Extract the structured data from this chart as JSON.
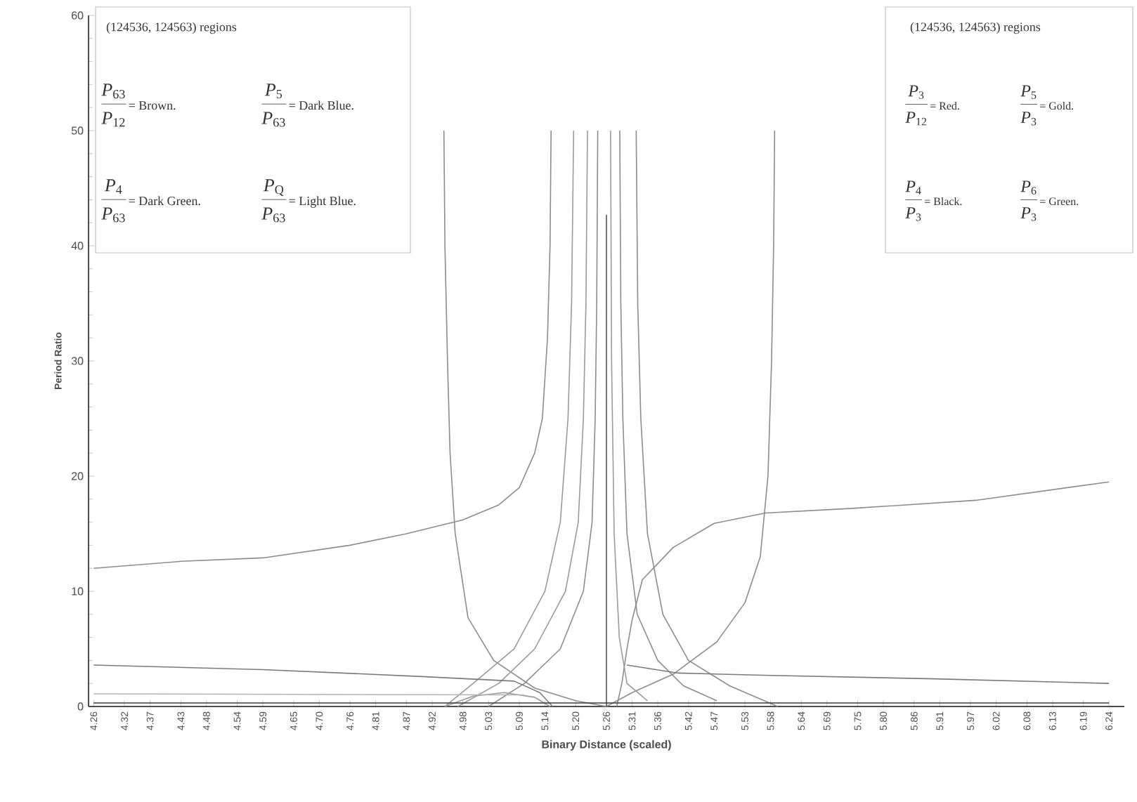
{
  "chart_data": {
    "type": "line",
    "xlabel": "Binary Distance (scaled)",
    "ylabel": "Period Ratio",
    "xlim": [
      4.25,
      6.27
    ],
    "ylim": [
      0,
      60
    ],
    "xticks": [
      4.26,
      4.32,
      4.37,
      4.43,
      4.48,
      4.54,
      4.59,
      4.65,
      {
        "value": 4.7,
        "label": "4.70"
      },
      4.76,
      4.81,
      4.87,
      4.92,
      4.98,
      5.03,
      5.09,
      5.14,
      {
        "value": 5.2,
        "label": "5.20"
      },
      5.26,
      5.31,
      5.36,
      5.42,
      5.47,
      5.53,
      5.58,
      5.64,
      5.69,
      5.75,
      {
        "value": 5.8,
        "label": "5.80"
      },
      5.86,
      5.91,
      5.97,
      6.02,
      6.08,
      6.13,
      6.19,
      6.24
    ],
    "yticks": [
      0,
      10,
      20,
      30,
      40,
      50,
      60
    ],
    "grid": false,
    "marker": "none",
    "line_style": "solid",
    "annotations": [
      "(124536, 124563) regions",
      "*P*$_{63}$",
      "*P*$_{12}$",
      "= Brown.",
      "*P*$_{5}$",
      "*P*$_{63}$",
      "= Dark Blue.",
      "*P*$_{4}$",
      "*P*$_{63}$",
      "= Dark Green.",
      "*P*$_{Q}$",
      "*P*$_{63}$",
      "= Light Blue.",
      "(124536, 124563) regions",
      "*P*$_{3}$",
      "*P*$_{12}$",
      "= Red.",
      "*P*$_{5}$",
      "*P*$_{3}$",
      "= Gold.",
      "*P*$_{4}$",
      "*P*$_{3}$",
      "= Black.",
      "*P*$_{6}$",
      "*P*$_{3}$",
      "= Green."
    ],
    "series": [
      {
        "color": "#8c8c8c",
        "x": [
          4.26,
          4.43,
          4.59,
          4.76,
          4.87,
          4.98,
          5.05,
          5.09,
          5.12,
          5.135,
          5.145,
          5.15,
          5.152
        ],
        "values": [
          12,
          12.6,
          12.9,
          14.0,
          15.0,
          16.2,
          17.5,
          19,
          22,
          25,
          32,
          40,
          50
        ]
      },
      {
        "color": "#8c8c8c",
        "x": [
          5.28,
          5.29,
          5.3,
          5.31,
          5.33,
          5.39,
          5.47,
          5.57,
          5.74,
          5.98,
          6.24
        ],
        "values": [
          0,
          2,
          5,
          7.5,
          11,
          13.8,
          15.9,
          16.8,
          17.2,
          17.9,
          19.5
        ]
      },
      {
        "color": "#8c8c8c",
        "x": [
          4.943,
          4.945,
          4.95,
          4.955,
          4.965,
          4.99,
          5.04,
          5.12,
          5.2,
          5.26
        ],
        "values": [
          50,
          40,
          30,
          22,
          15,
          7.7,
          4.0,
          1.6,
          0.5,
          0
        ]
      },
      {
        "color": "#8c8c8c",
        "x": [
          5.26,
          5.31,
          5.39,
          5.475,
          5.53,
          5.56,
          5.575,
          5.582,
          5.586,
          5.588
        ],
        "values": [
          0,
          1.2,
          2.8,
          5.6,
          9,
          13,
          20,
          30,
          40,
          50
        ]
      },
      {
        "color": "#999999",
        "x": [
          4.945,
          5.0,
          5.08,
          5.14,
          5.17,
          5.185,
          5.192,
          5.196
        ],
        "values": [
          0,
          2,
          5,
          10,
          16,
          25,
          35,
          50
        ]
      },
      {
        "color": "#999999",
        "x": [
          4.97,
          5.05,
          5.12,
          5.18,
          5.205,
          5.215,
          5.22,
          5.223
        ],
        "values": [
          0,
          2,
          5,
          10,
          16,
          25,
          35,
          50
        ]
      },
      {
        "color": "#8c8c8c",
        "x": [
          5.03,
          5.1,
          5.17,
          5.215,
          5.232,
          5.238,
          5.241,
          5.243
        ],
        "values": [
          0,
          2,
          5,
          10,
          16,
          25,
          35,
          50
        ]
      },
      {
        "color": "#555555",
        "x": [
          5.26,
          5.26
        ],
        "values": [
          0,
          42.7
        ]
      },
      {
        "color": "#9a9a9a",
        "x": [
          5.268,
          5.27,
          5.275,
          5.285,
          5.3,
          5.34
        ],
        "values": [
          50,
          30,
          15,
          6,
          2,
          0.5
        ]
      },
      {
        "color": "#8c8c8c",
        "x": [
          5.286,
          5.288,
          5.292,
          5.3,
          5.32,
          5.36,
          5.41,
          5.475
        ],
        "values": [
          50,
          35,
          25,
          15,
          8,
          4,
          1.8,
          0.5
        ]
      },
      {
        "color": "#8c8c8c",
        "x": [
          5.318,
          5.321,
          5.327,
          5.34,
          5.37,
          5.42,
          5.5,
          5.594
        ],
        "values": [
          50,
          35,
          25,
          15,
          8,
          4,
          1.8,
          0
        ]
      },
      {
        "color": "#999999",
        "x": [
          4.945,
          5.0,
          5.06,
          5.12,
          5.15
        ],
        "values": [
          0,
          0.9,
          1.2,
          0.8,
          0
        ]
      },
      {
        "color": "#7a7a7a",
        "x": [
          4.26,
          4.59,
          4.9,
          5.08,
          5.13,
          5.155
        ],
        "values": [
          3.6,
          3.2,
          2.6,
          2.2,
          1.2,
          0
        ]
      },
      {
        "color": "#7a7a7a",
        "x": [
          5.3,
          5.4,
          5.58,
          5.9,
          6.24
        ],
        "values": [
          3.6,
          2.9,
          2.7,
          2.4,
          2.0
        ]
      },
      {
        "color": "#b4b4b4",
        "x": [
          4.26,
          5.1
        ],
        "values": [
          1.1,
          1.0
        ]
      },
      {
        "color": "#3a3a3a",
        "x": [
          4.26,
          6.24
        ],
        "values": [
          0.3,
          0.3
        ]
      }
    ]
  }
}
